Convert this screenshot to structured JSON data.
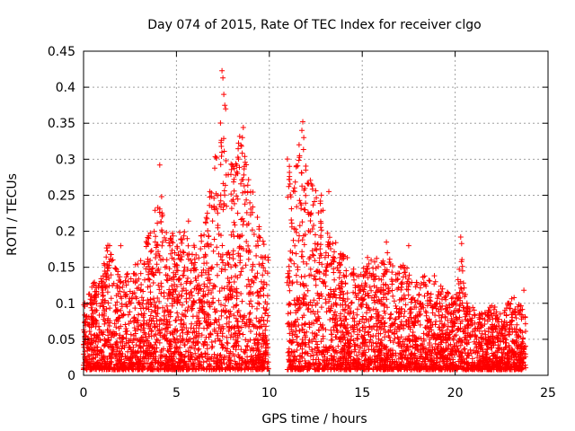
{
  "chart_data": {
    "type": "scatter",
    "title": "Day 074 of 2015, Rate Of TEC Index for receiver clgo",
    "xlabel": "GPS time / hours",
    "ylabel": "ROTI / TECUs",
    "xlim": [
      0,
      25
    ],
    "ylim": [
      0,
      0.45
    ],
    "x_ticks": [
      "0",
      "5",
      "10",
      "15",
      "20",
      "25"
    ],
    "y_ticks": [
      "0",
      "0.05",
      "0.1",
      "0.15",
      "0.2",
      "0.25",
      "0.3",
      "0.35",
      "0.4",
      "0.45"
    ],
    "grid": true,
    "marker": "+",
    "color": "#ff0000",
    "envelope": [
      {
        "x": 0.0,
        "y": 0.09
      },
      {
        "x": 0.5,
        "y": 0.12
      },
      {
        "x": 1.0,
        "y": 0.13
      },
      {
        "x": 1.3,
        "y": 0.18
      },
      {
        "x": 2.0,
        "y": 0.13
      },
      {
        "x": 3.0,
        "y": 0.15
      },
      {
        "x": 3.5,
        "y": 0.19
      },
      {
        "x": 4.0,
        "y": 0.24
      },
      {
        "x": 4.5,
        "y": 0.19
      },
      {
        "x": 5.0,
        "y": 0.19
      },
      {
        "x": 5.5,
        "y": 0.2
      },
      {
        "x": 6.0,
        "y": 0.17
      },
      {
        "x": 6.5,
        "y": 0.2
      },
      {
        "x": 7.0,
        "y": 0.28
      },
      {
        "x": 7.4,
        "y": 0.35
      },
      {
        "x": 7.7,
        "y": 0.29
      },
      {
        "x": 8.0,
        "y": 0.29
      },
      {
        "x": 8.4,
        "y": 0.33
      },
      {
        "x": 8.8,
        "y": 0.28
      },
      {
        "x": 9.2,
        "y": 0.24
      },
      {
        "x": 9.6,
        "y": 0.19
      },
      {
        "x": 9.9,
        "y": 0.16
      },
      {
        "x": 11.0,
        "y": 0.3
      },
      {
        "x": 11.3,
        "y": 0.26
      },
      {
        "x": 11.7,
        "y": 0.32
      },
      {
        "x": 12.0,
        "y": 0.3
      },
      {
        "x": 12.5,
        "y": 0.25
      },
      {
        "x": 13.0,
        "y": 0.22
      },
      {
        "x": 13.5,
        "y": 0.18
      },
      {
        "x": 14.0,
        "y": 0.16
      },
      {
        "x": 14.5,
        "y": 0.15
      },
      {
        "x": 15.0,
        "y": 0.14
      },
      {
        "x": 15.5,
        "y": 0.17
      },
      {
        "x": 16.0,
        "y": 0.15
      },
      {
        "x": 16.5,
        "y": 0.17
      },
      {
        "x": 17.0,
        "y": 0.15
      },
      {
        "x": 17.5,
        "y": 0.14
      },
      {
        "x": 18.0,
        "y": 0.12
      },
      {
        "x": 18.5,
        "y": 0.14
      },
      {
        "x": 19.0,
        "y": 0.13
      },
      {
        "x": 19.5,
        "y": 0.11
      },
      {
        "x": 20.0,
        "y": 0.1
      },
      {
        "x": 20.3,
        "y": 0.18
      },
      {
        "x": 20.6,
        "y": 0.1
      },
      {
        "x": 21.0,
        "y": 0.09
      },
      {
        "x": 21.5,
        "y": 0.08
      },
      {
        "x": 22.0,
        "y": 0.09
      },
      {
        "x": 22.5,
        "y": 0.08
      },
      {
        "x": 23.0,
        "y": 0.1
      },
      {
        "x": 23.5,
        "y": 0.11
      },
      {
        "x": 23.8,
        "y": 0.07
      }
    ],
    "outliers": [
      {
        "x": 7.45,
        "y": 0.423
      },
      {
        "x": 7.5,
        "y": 0.413
      },
      {
        "x": 7.55,
        "y": 0.39
      },
      {
        "x": 7.6,
        "y": 0.375
      },
      {
        "x": 7.65,
        "y": 0.37
      },
      {
        "x": 4.1,
        "y": 0.292
      },
      {
        "x": 4.2,
        "y": 0.248
      },
      {
        "x": 4.0,
        "y": 0.233
      },
      {
        "x": 5.65,
        "y": 0.214
      },
      {
        "x": 8.6,
        "y": 0.344
      },
      {
        "x": 8.55,
        "y": 0.33
      },
      {
        "x": 8.5,
        "y": 0.318
      },
      {
        "x": 11.8,
        "y": 0.352
      },
      {
        "x": 11.75,
        "y": 0.34
      },
      {
        "x": 11.85,
        "y": 0.33
      },
      {
        "x": 11.6,
        "y": 0.32
      },
      {
        "x": 12.8,
        "y": 0.25
      },
      {
        "x": 13.2,
        "y": 0.255
      },
      {
        "x": 20.3,
        "y": 0.192
      },
      {
        "x": 20.35,
        "y": 0.183
      },
      {
        "x": 20.4,
        "y": 0.145
      },
      {
        "x": 17.5,
        "y": 0.18
      },
      {
        "x": 16.3,
        "y": 0.185
      },
      {
        "x": 1.4,
        "y": 0.18
      },
      {
        "x": 2.0,
        "y": 0.18
      },
      {
        "x": 3.5,
        "y": 0.19
      },
      {
        "x": 6.8,
        "y": 0.255
      },
      {
        "x": 23.7,
        "y": 0.118
      },
      {
        "x": 21.3,
        "y": 0.085
      }
    ]
  }
}
